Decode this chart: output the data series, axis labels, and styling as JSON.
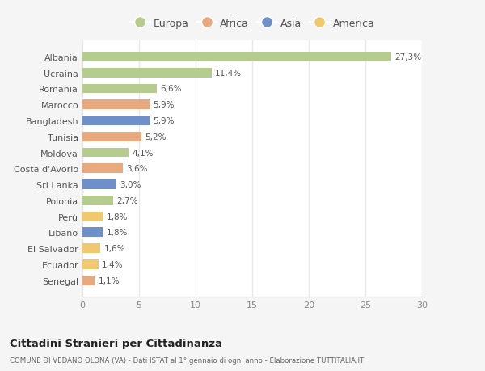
{
  "countries": [
    "Albania",
    "Ucraina",
    "Romania",
    "Marocco",
    "Bangladesh",
    "Tunisia",
    "Moldova",
    "Costa d'Avorio",
    "Sri Lanka",
    "Polonia",
    "Perù",
    "Libano",
    "El Salvador",
    "Ecuador",
    "Senegal"
  ],
  "values": [
    27.3,
    11.4,
    6.6,
    5.9,
    5.9,
    5.2,
    4.1,
    3.6,
    3.0,
    2.7,
    1.8,
    1.8,
    1.6,
    1.4,
    1.1
  ],
  "labels": [
    "27,3%",
    "11,4%",
    "6,6%",
    "5,9%",
    "5,9%",
    "5,2%",
    "4,1%",
    "3,6%",
    "3,0%",
    "2,7%",
    "1,8%",
    "1,8%",
    "1,6%",
    "1,4%",
    "1,1%"
  ],
  "continents": [
    "Europa",
    "Europa",
    "Europa",
    "Africa",
    "Asia",
    "Africa",
    "Europa",
    "Africa",
    "Asia",
    "Europa",
    "America",
    "Asia",
    "America",
    "America",
    "Africa"
  ],
  "colors": {
    "Europa": "#b5cc8e",
    "Africa": "#e8a97e",
    "Asia": "#6e8fc9",
    "America": "#f0c96e"
  },
  "legend_order": [
    "Europa",
    "Africa",
    "Asia",
    "America"
  ],
  "xlim": [
    0,
    30
  ],
  "xticks": [
    0,
    5,
    10,
    15,
    20,
    25,
    30
  ],
  "title": "Cittadini Stranieri per Cittadinanza",
  "subtitle": "COMUNE DI VEDANO OLONA (VA) - Dati ISTAT al 1° gennaio di ogni anno - Elaborazione TUTTITALIA.IT",
  "fig_bg_color": "#f5f5f5",
  "plot_bg_color": "#ffffff",
  "grid_color": "#e8e8e8",
  "bar_height": 0.6
}
